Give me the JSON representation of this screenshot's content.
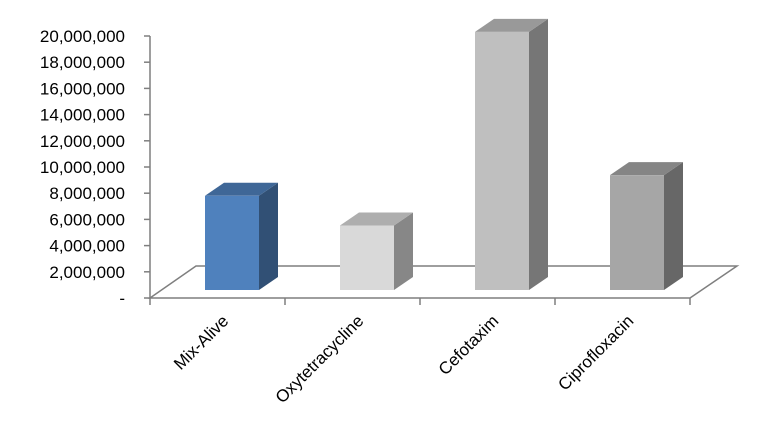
{
  "chart_data": {
    "type": "bar",
    "style": "3d-column",
    "title": "",
    "xlabel": "",
    "ylabel": "",
    "categories": [
      "Mix-Alive",
      "Oxytetracycline",
      "Cefotaxim",
      "Ciprofloxacin"
    ],
    "values": [
      7300000,
      5000000,
      20000000,
      8900000
    ],
    "ylim": [
      0,
      20000000
    ],
    "yticks": [
      0,
      2000000,
      4000000,
      6000000,
      8000000,
      10000000,
      12000000,
      14000000,
      16000000,
      18000000,
      20000000
    ],
    "ytick_labels": [
      "-",
      "2,000,000",
      "4,000,000",
      "6,000,000",
      "8,000,000",
      "10,000,000",
      "12,000,000",
      "14,000,000",
      "16,000,000",
      "18,000,000",
      "20,000,000"
    ],
    "grid": false,
    "legend": "none",
    "colors": [
      "#4f81bd",
      "#d9d9d9",
      "#bfbfbf",
      "#a6a6a6"
    ]
  }
}
